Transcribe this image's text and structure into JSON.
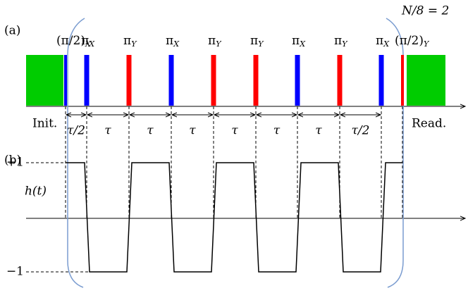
{
  "header": {
    "note": "N/8 = 2"
  },
  "panels": {
    "a": "(a)",
    "b": "(b)"
  },
  "pulses": [
    {
      "text": "(π/2)",
      "sub": "X"
    },
    {
      "text": "π",
      "sub": "X"
    },
    {
      "text": "π",
      "sub": "Y"
    },
    {
      "text": "π",
      "sub": "X"
    },
    {
      "text": "π",
      "sub": "Y"
    },
    {
      "text": "π",
      "sub": "Y"
    },
    {
      "text": "π",
      "sub": "X"
    },
    {
      "text": "π",
      "sub": "Y"
    },
    {
      "text": "π",
      "sub": "X"
    },
    {
      "text": "(π/2)",
      "sub": "Y"
    }
  ],
  "phases": {
    "init": "Init.",
    "read": "Read."
  },
  "intervals": [
    "τ/2",
    "τ",
    "τ",
    "τ",
    "τ",
    "τ",
    "τ",
    "τ/2"
  ],
  "waveform": {
    "plus": "+1",
    "minus": "−1",
    "label": "h(t)"
  }
}
